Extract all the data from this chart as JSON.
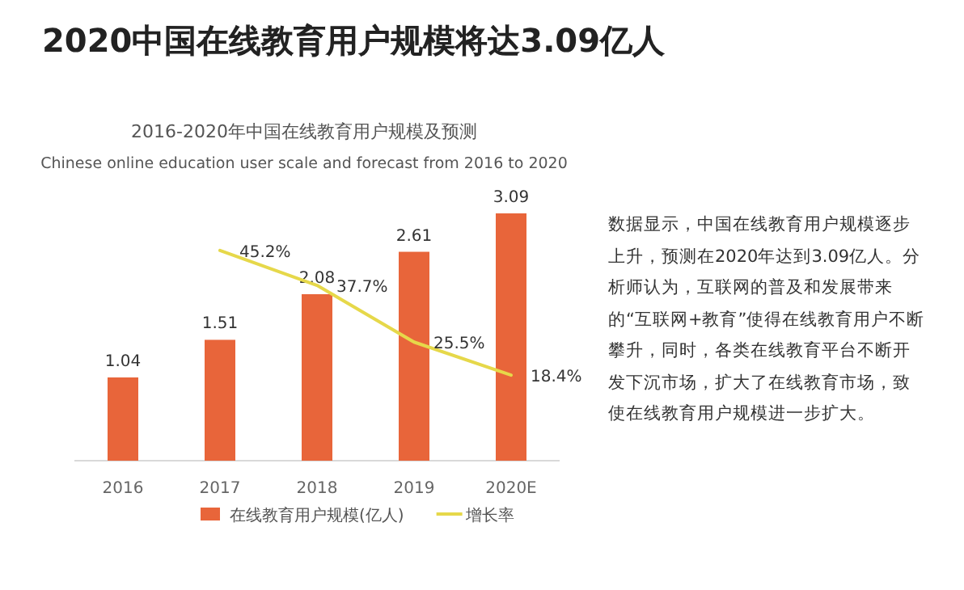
{
  "chart_data": {
    "type": "bar",
    "title": "2020中国在线教育用户规模将达3.09亿人",
    "subtitle": "2016-2020年中国在线教育用户规模及预测",
    "annotations": [
      "Chinese online education user scale and forecast from 2016 to 2020",
      "数据显示，中国在线教育用户规模逐步上升，预测在2020年达到3.09亿人。分析师认为，互联网的普及和发展带来的“互联网+教育”使得在线教育用户不断攀升，同时，各类在线教育平台不断开发下沉市场，扩大了在线教育市场，致使在线教育用户规模进一步扩大。"
    ],
    "categories": [
      "2016",
      "2017",
      "2018",
      "2019",
      "2020E"
    ],
    "series": [
      {
        "name": "在线教育用户规模(亿人)",
        "color": "#e8653a",
        "values": [
          1.04,
          1.51,
          2.08,
          2.61,
          3.09
        ]
      },
      {
        "name": "增长率",
        "type": "line",
        "axis": "y2",
        "color": "#e6d84a",
        "values": [
          null,
          45.2,
          37.7,
          25.5,
          18.4
        ],
        "value_labels": [
          null,
          "45.2%",
          "37.7%",
          "25.5%",
          "18.4%"
        ]
      }
    ],
    "data_labels": true,
    "legend": "bottom"
  }
}
